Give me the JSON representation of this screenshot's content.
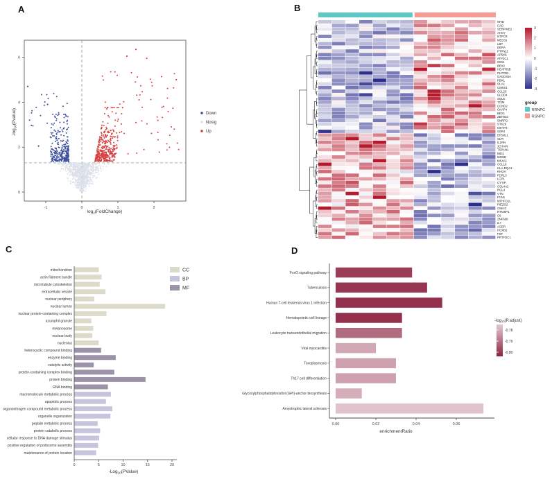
{
  "panels": {
    "a": "A",
    "b": "B",
    "c": "C",
    "d": "D"
  },
  "chart_data": [
    {
      "id": "A",
      "type": "scatter",
      "kind": "volcano",
      "xlabel": "log2(FoldChange)",
      "ylabel": "-log10(Pvalue)",
      "xlabel_parts": {
        "pre": "log",
        "sub": "2",
        "post": "(FoldChange)"
      },
      "ylabel_parts": {
        "pre": "-log",
        "sub": "10",
        "post": "(Pvalue)"
      },
      "xticks": [
        -1,
        0,
        1,
        2
      ],
      "yticks": [
        0,
        2,
        4,
        6
      ],
      "xlim": [
        -1.65,
        2.85
      ],
      "ylim": [
        0,
        6.8
      ],
      "threshold_lines": {
        "vertical_x": 0,
        "horizontal_y": 1.3
      },
      "legend": [
        {
          "label": "Down",
          "color": "#3D4E9E"
        },
        {
          "label": "Nosig",
          "color": "#D9DFE8"
        },
        {
          "label": "Up",
          "color": "#D5403E"
        }
      ],
      "point_generator": {
        "seed": 7,
        "nosig_n": 950,
        "down_n": 280,
        "down_outliers_n": 24,
        "up_n": 340,
        "up_outliers_n": 60,
        "up_feature_points": [
          [
            1.5,
            6.35
          ],
          [
            1.25,
            6.05
          ],
          [
            1.8,
            5.95
          ],
          [
            2.62,
            5.0
          ]
        ],
        "down_feature_points": [
          [
            -1.5,
            4.7
          ],
          [
            -0.95,
            3.9
          ],
          [
            -1.2,
            2.05
          ]
        ]
      }
    },
    {
      "id": "B",
      "type": "heatmap",
      "rows": [
        "NFIB",
        "CAD",
        "SERPINE2",
        "AHCY",
        "NTPCR",
        "MED31",
        "LBP",
        "DERA",
        "PTPN11",
        "AP5M1",
        "ATP2C1",
        "IWS1",
        "BEX2",
        "HEATR5B",
        "PLPPR2",
        "GADD45A",
        "PBX1",
        "OLA1",
        "CMSS1",
        "CCL20",
        "GLOD4",
        "SQLE",
        "TCIM",
        "CCND2",
        "CKAP4",
        "BEX1",
        "ZBTB33",
        "SNRPG",
        "STK26",
        "KIFAP3",
        "SSR4",
        "EPS8L1",
        "SLPI",
        "IL1RN",
        "JCHAIN",
        "TSPAN1",
        "MEI1",
        "MSMB",
        "MS4A1",
        "CCL19",
        "HLA-DQA1",
        "RHOH",
        "FCRL3",
        "LCP1",
        "CYTIP",
        "COL4A2",
        "RGL4",
        "VTN",
        "FCN1",
        "MTHFD1L",
        "PIEZO2",
        "CNIH3",
        "RTN4IP1",
        "C6",
        "ZNF608",
        "IL7",
        "AGER",
        "HOXB2",
        "FST",
        "PRTFDC1"
      ],
      "n_sample_columns": 13,
      "column_groups": [
        {
          "label": "RRNPC",
          "color": "#5EC8C5",
          "columns": 7
        },
        {
          "label": "RSNPC",
          "color": "#F59B94",
          "columns": 6
        }
      ],
      "legend_title": "group",
      "colorbar_ticks": [
        "3",
        "2",
        "1",
        "0",
        "-1",
        "-2",
        "-3"
      ],
      "value_range": [
        -3,
        3
      ],
      "colors": {
        "low": "#2D2F8E",
        "mid": "#FFFFFF",
        "high": "#B5172B"
      },
      "pattern": {
        "seed": 11,
        "flip_row_index": 31,
        "description": "rows 0-30 low (blue) in RRNPC and high (red) in RSNPC; rows 31-59 reversed",
        "hotspots": [
          {
            "row": 13,
            "col": 7,
            "value": 3
          },
          {
            "row": 19,
            "col": 8,
            "value": 2.9
          },
          {
            "row": 20,
            "col": 8,
            "value": 3
          },
          {
            "row": 21,
            "col": 8,
            "value": 2.7
          },
          {
            "row": 12,
            "col": 8,
            "value": 2.5
          }
        ]
      }
    },
    {
      "id": "C",
      "type": "bar",
      "orientation": "horizontal",
      "xlabel": "-Log10(PValue)",
      "xlabel_parts": {
        "pre": "-Log",
        "sub": "10",
        "post": "(PValue)"
      },
      "xticks": [
        0,
        5,
        10,
        15,
        20
      ],
      "xlim": [
        0,
        21
      ],
      "legend": [
        {
          "label": "CC",
          "color": "#DCDBCA"
        },
        {
          "label": "BP",
          "color": "#C7C5DE"
        },
        {
          "label": "MF",
          "color": "#9C93A8"
        }
      ],
      "bars": [
        {
          "label": "mitochondrion",
          "value": 5.0,
          "group": "CC"
        },
        {
          "label": "actin filament bundle",
          "value": 5.6,
          "group": "CC"
        },
        {
          "label": "microtubule cytoskeleton",
          "value": 5.2,
          "group": "CC"
        },
        {
          "label": "extracellular vesicle",
          "value": 6.4,
          "group": "CC"
        },
        {
          "label": "nuclear periphery",
          "value": 4.1,
          "group": "CC"
        },
        {
          "label": "nuclear lumen",
          "value": 18.6,
          "group": "CC"
        },
        {
          "label": "nuclear protein-containing complex",
          "value": 6.6,
          "group": "CC"
        },
        {
          "label": "azurophil granule",
          "value": 3.5,
          "group": "CC"
        },
        {
          "label": "melanosome",
          "value": 3.9,
          "group": "CC"
        },
        {
          "label": "nuclear body",
          "value": 3.7,
          "group": "CC"
        },
        {
          "label": "nucleolus",
          "value": 5.0,
          "group": "CC"
        },
        {
          "label": "heterocyclic compound binding",
          "value": 5.5,
          "group": "MF"
        },
        {
          "label": "enzyme binding",
          "value": 8.5,
          "group": "MF"
        },
        {
          "label": "catalytic activity",
          "value": 4.0,
          "group": "MF"
        },
        {
          "label": "protein-containing complex binding",
          "value": 8.2,
          "group": "MF"
        },
        {
          "label": "protein binding",
          "value": 14.6,
          "group": "MF"
        },
        {
          "label": "RNA binding",
          "value": 6.9,
          "group": "MF"
        },
        {
          "label": "macromolecule metabolic process",
          "value": 7.5,
          "group": "BP"
        },
        {
          "label": "apoptotic process",
          "value": 6.5,
          "group": "BP"
        },
        {
          "label": "organonitrogen compound metabolic process",
          "value": 7.8,
          "group": "BP"
        },
        {
          "label": "organelle organization",
          "value": 7.4,
          "group": "BP"
        },
        {
          "label": "peptide metabolic process",
          "value": 4.8,
          "group": "BP"
        },
        {
          "label": "protein catabolic process",
          "value": 5.3,
          "group": "BP"
        },
        {
          "label": "cellular response to DNA damage stimulus",
          "value": 5.1,
          "group": "BP"
        },
        {
          "label": "positive regulation of podosome assembly",
          "value": 4.9,
          "group": "BP"
        },
        {
          "label": "maintenance of protein location",
          "value": 4.5,
          "group": "BP"
        }
      ]
    },
    {
      "id": "D",
      "type": "bar",
      "orientation": "horizontal",
      "xlabel": "enrichmentRatio",
      "xticks": [
        "0.00",
        "0.02",
        "0.04",
        "0.06"
      ],
      "xlim": [
        0,
        0.077
      ],
      "colorbar": {
        "title": "-log10(P.adjust)",
        "title_parts": {
          "pre": "-log",
          "sub": "10",
          "post": "(P.adjust)"
        },
        "ticks": [
          "-0.78",
          "-0.79",
          "-0.80"
        ],
        "light": "#E3C9D1",
        "dark": "#8C2340",
        "domain": [
          -0.78,
          -0.805
        ]
      },
      "bars": [
        {
          "label": "FoxO signaling pathway",
          "value": 0.038,
          "padj": -0.801
        },
        {
          "label": "Tuberculosis",
          "value": 0.0455,
          "padj": -0.802
        },
        {
          "label": "Human T-cell leukemia virus 1 infection",
          "value": 0.053,
          "padj": -0.803
        },
        {
          "label": "Hematopoietic cell lineage",
          "value": 0.033,
          "padj": -0.803
        },
        {
          "label": "Leukocyte transendothelial migration",
          "value": 0.033,
          "padj": -0.794
        },
        {
          "label": "Viral myocarditis",
          "value": 0.02,
          "padj": -0.785
        },
        {
          "label": "Toxoplasmosis",
          "value": 0.03,
          "padj": -0.786
        },
        {
          "label": "Th17 cell differentiation",
          "value": 0.03,
          "padj": -0.786
        },
        {
          "label": "Glycosylphosphatidylinositol (GPI)-anchor biosynthesis",
          "value": 0.013,
          "padj": -0.784
        },
        {
          "label": "Amyotrophic lateral sclerosis",
          "value": 0.0735,
          "padj": -0.781
        }
      ]
    }
  ]
}
